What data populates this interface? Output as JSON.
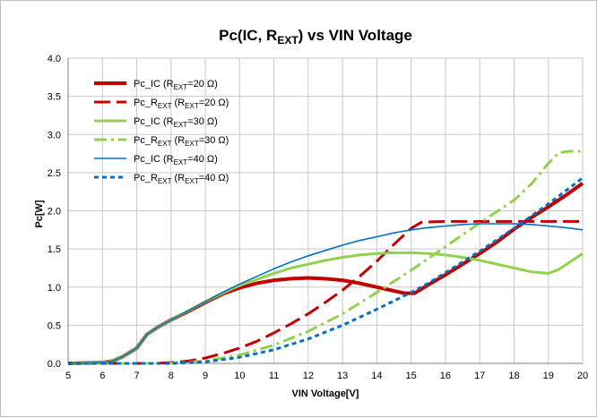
{
  "chart_data": {
    "type": "line",
    "title": {
      "main": "Pc(IC, R",
      "sub": "EXT",
      "tail": ") vs VIN Voltage"
    },
    "xlabel": "VIN  Voltage[V]",
    "ylabel": "Pc[W]",
    "xlim": [
      5,
      20
    ],
    "ylim": [
      0,
      4
    ],
    "x_ticks": [
      "5",
      "6",
      "7",
      "8",
      "9",
      "10",
      "11",
      "12",
      "13",
      "14",
      "15",
      "16",
      "17",
      "18",
      "19",
      "20"
    ],
    "y_ticks": [
      "0.0",
      "0.5",
      "1.0",
      "1.5",
      "2.0",
      "2.5",
      "3.0",
      "3.5",
      "4.0"
    ],
    "grid": true,
    "legend_position": "top-left",
    "series": [
      {
        "legend": {
          "pre": "Pc_IC (R",
          "sub": "EXT",
          "post": "=20 Ω)"
        },
        "color": "#c00000",
        "dash": "solid",
        "width": 4,
        "points": [
          [
            5,
            0
          ],
          [
            6,
            0.01
          ],
          [
            6.3,
            0.03
          ],
          [
            6.6,
            0.09
          ],
          [
            7,
            0.2
          ],
          [
            7.3,
            0.38
          ],
          [
            7.6,
            0.47
          ],
          [
            8,
            0.57
          ],
          [
            8.5,
            0.68
          ],
          [
            9,
            0.8
          ],
          [
            9.5,
            0.91
          ],
          [
            10,
            0.99
          ],
          [
            10.5,
            1.05
          ],
          [
            11,
            1.09
          ],
          [
            11.5,
            1.11
          ],
          [
            12,
            1.12
          ],
          [
            12.5,
            1.11
          ],
          [
            13,
            1.09
          ],
          [
            13.5,
            1.05
          ],
          [
            14,
            1.0
          ],
          [
            14.5,
            0.95
          ],
          [
            14.8,
            0.92
          ],
          [
            15.1,
            0.92
          ],
          [
            15.5,
            1.03
          ],
          [
            16,
            1.16
          ],
          [
            16.5,
            1.3
          ],
          [
            17,
            1.44
          ],
          [
            17.5,
            1.59
          ],
          [
            18,
            1.76
          ],
          [
            18.5,
            1.91
          ],
          [
            19,
            2.05
          ],
          [
            19.5,
            2.2
          ],
          [
            20,
            2.36
          ]
        ]
      },
      {
        "legend": {
          "pre": "Pc_R",
          "sub": "EXT",
          "post": " (R",
          "sub2": "EXT",
          "post2": "=20 Ω)"
        },
        "color": "#c00000",
        "dash": "18,7",
        "width": 3,
        "points": [
          [
            5,
            0
          ],
          [
            7.5,
            0
          ],
          [
            8,
            0.01
          ],
          [
            8.5,
            0.03
          ],
          [
            9,
            0.07
          ],
          [
            9.5,
            0.13
          ],
          [
            10,
            0.2
          ],
          [
            10.5,
            0.29
          ],
          [
            11,
            0.4
          ],
          [
            11.5,
            0.52
          ],
          [
            12,
            0.65
          ],
          [
            12.5,
            0.8
          ],
          [
            13,
            0.96
          ],
          [
            13.5,
            1.14
          ],
          [
            14,
            1.34
          ],
          [
            14.5,
            1.56
          ],
          [
            15,
            1.77
          ],
          [
            15.3,
            1.85
          ],
          [
            16,
            1.86
          ],
          [
            20,
            1.86
          ]
        ]
      },
      {
        "legend": {
          "pre": "Pc_IC (R",
          "sub": "EXT",
          "post": "=30 Ω)"
        },
        "color": "#92d050",
        "dash": "solid",
        "width": 3,
        "points": [
          [
            5,
            0
          ],
          [
            6,
            0.01
          ],
          [
            6.3,
            0.03
          ],
          [
            6.6,
            0.09
          ],
          [
            7,
            0.2
          ],
          [
            7.3,
            0.38
          ],
          [
            7.6,
            0.47
          ],
          [
            8,
            0.57
          ],
          [
            8.5,
            0.69
          ],
          [
            9,
            0.81
          ],
          [
            9.5,
            0.92
          ],
          [
            10,
            1.02
          ],
          [
            10.5,
            1.1
          ],
          [
            11,
            1.18
          ],
          [
            11.5,
            1.25
          ],
          [
            12,
            1.3
          ],
          [
            12.5,
            1.35
          ],
          [
            13,
            1.39
          ],
          [
            13.5,
            1.42
          ],
          [
            14,
            1.44
          ],
          [
            14.5,
            1.45
          ],
          [
            15,
            1.45
          ],
          [
            15.5,
            1.44
          ],
          [
            16,
            1.42
          ],
          [
            16.5,
            1.39
          ],
          [
            17,
            1.35
          ],
          [
            17.5,
            1.3
          ],
          [
            18,
            1.25
          ],
          [
            18.5,
            1.2
          ],
          [
            19,
            1.18
          ],
          [
            19.3,
            1.23
          ],
          [
            19.7,
            1.35
          ],
          [
            20,
            1.44
          ]
        ]
      },
      {
        "legend": {
          "pre": "Pc_R",
          "sub": "EXT",
          "post": " (R",
          "sub2": "EXT",
          "post2": "=30 Ω)"
        },
        "color": "#92d050",
        "dash": "14,5,3,5",
        "width": 3,
        "points": [
          [
            5,
            0
          ],
          [
            8,
            0
          ],
          [
            9,
            0.03
          ],
          [
            10,
            0.11
          ],
          [
            11,
            0.24
          ],
          [
            12,
            0.42
          ],
          [
            13,
            0.65
          ],
          [
            14,
            0.93
          ],
          [
            15,
            1.22
          ],
          [
            16,
            1.53
          ],
          [
            17,
            1.84
          ],
          [
            18,
            2.14
          ],
          [
            18.5,
            2.35
          ],
          [
            19,
            2.62
          ],
          [
            19.3,
            2.76
          ],
          [
            19.6,
            2.78
          ],
          [
            20,
            2.78
          ]
        ]
      },
      {
        "legend": {
          "pre": "Pc_IC (R",
          "sub": "EXT",
          "post": "=40 Ω)"
        },
        "color": "#0070c0",
        "dash": "solid",
        "width": 1.6,
        "points": [
          [
            5,
            0
          ],
          [
            6,
            0.01
          ],
          [
            6.3,
            0.03
          ],
          [
            6.6,
            0.09
          ],
          [
            7,
            0.2
          ],
          [
            7.3,
            0.38
          ],
          [
            7.6,
            0.47
          ],
          [
            8,
            0.57
          ],
          [
            8.5,
            0.69
          ],
          [
            9,
            0.81
          ],
          [
            9.5,
            0.93
          ],
          [
            10,
            1.04
          ],
          [
            10.5,
            1.14
          ],
          [
            11,
            1.24
          ],
          [
            11.5,
            1.33
          ],
          [
            12,
            1.41
          ],
          [
            12.5,
            1.48
          ],
          [
            13,
            1.55
          ],
          [
            13.5,
            1.61
          ],
          [
            14,
            1.66
          ],
          [
            14.5,
            1.71
          ],
          [
            15,
            1.75
          ],
          [
            15.5,
            1.78
          ],
          [
            16,
            1.8
          ],
          [
            16.5,
            1.82
          ],
          [
            17,
            1.83
          ],
          [
            17.5,
            1.83
          ],
          [
            18,
            1.83
          ],
          [
            18.5,
            1.82
          ],
          [
            19,
            1.8
          ],
          [
            19.5,
            1.78
          ],
          [
            20,
            1.75
          ]
        ]
      },
      {
        "legend": {
          "pre": "Pc_R",
          "sub": "EXT",
          "post": " (R",
          "sub2": "EXT",
          "post2": "=40 Ω)"
        },
        "color": "#0070c0",
        "dash": "5,4",
        "width": 3,
        "points": [
          [
            5,
            0
          ],
          [
            8,
            0
          ],
          [
            9,
            0.02
          ],
          [
            10,
            0.08
          ],
          [
            11,
            0.18
          ],
          [
            12,
            0.32
          ],
          [
            13,
            0.5
          ],
          [
            14,
            0.71
          ],
          [
            15,
            0.93
          ],
          [
            15.5,
            1.05
          ],
          [
            16,
            1.19
          ],
          [
            17,
            1.47
          ],
          [
            18,
            1.77
          ],
          [
            19,
            2.09
          ],
          [
            20,
            2.43
          ]
        ]
      }
    ]
  }
}
